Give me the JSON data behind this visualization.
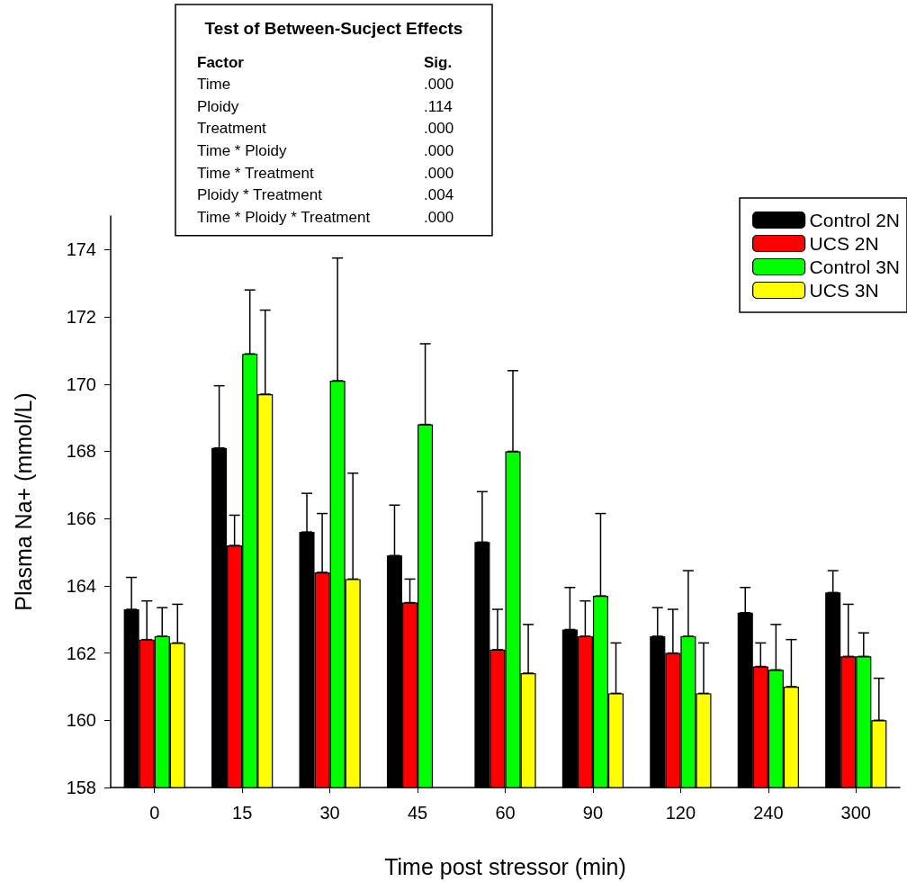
{
  "chart_data": {
    "type": "bar",
    "xlabel": "Time post stressor (min)",
    "ylabel": "Plasma Na+ (mmol/L)",
    "categories": [
      "0",
      "15",
      "30",
      "45",
      "60",
      "90",
      "120",
      "240",
      "300"
    ],
    "series": [
      {
        "name": "Control 2N",
        "color": "#000000",
        "values": [
          163.3,
          168.1,
          165.6,
          164.9,
          165.3,
          162.7,
          162.5,
          163.2,
          163.8
        ],
        "errors": [
          [
            163.3,
            164.25
          ],
          [
            168.1,
            169.95
          ],
          [
            165.6,
            166.75
          ],
          [
            164.9,
            166.4
          ],
          [
            165.3,
            166.8
          ],
          [
            162.7,
            163.95
          ],
          [
            162.5,
            163.35
          ],
          [
            163.2,
            163.95
          ],
          [
            163.8,
            164.45
          ]
        ]
      },
      {
        "name": "UCS 2N",
        "color": "#ff0000",
        "values": [
          162.4,
          165.2,
          164.4,
          163.5,
          162.1,
          162.5,
          162.0,
          161.6,
          161.9
        ],
        "errors": [
          [
            162.4,
            163.55
          ],
          [
            165.2,
            166.1
          ],
          [
            164.4,
            166.15
          ],
          [
            163.5,
            164.2
          ],
          [
            162.1,
            163.3
          ],
          [
            162.5,
            163.55
          ],
          [
            162.0,
            163.3
          ],
          [
            161.6,
            162.3
          ],
          [
            161.9,
            163.45
          ]
        ]
      },
      {
        "name": "Control 3N",
        "color": "#00ff00",
        "values": [
          162.5,
          170.9,
          170.1,
          168.8,
          168.0,
          163.7,
          162.5,
          161.5,
          161.9
        ],
        "errors": [
          [
            162.5,
            163.35
          ],
          [
            170.9,
            172.8
          ],
          [
            170.1,
            173.75
          ],
          [
            168.8,
            171.2
          ],
          [
            168.0,
            170.4
          ],
          [
            163.7,
            166.15
          ],
          [
            162.5,
            164.45
          ],
          [
            161.5,
            162.85
          ],
          [
            161.9,
            162.6
          ]
        ]
      },
      {
        "name": "UCS 3N",
        "color": "#ffff00",
        "values": [
          162.3,
          169.7,
          164.2,
          null,
          161.4,
          160.8,
          160.8,
          161.0,
          160.0
        ],
        "errors": [
          [
            162.3,
            163.45
          ],
          [
            169.7,
            172.2
          ],
          [
            164.2,
            167.35
          ],
          null,
          [
            161.4,
            162.85
          ],
          [
            160.8,
            162.3
          ],
          [
            160.8,
            162.3
          ],
          [
            161.0,
            162.4
          ],
          [
            160.0,
            161.25
          ]
        ]
      }
    ],
    "ylim": [
      158,
      175
    ],
    "yticks": [
      158,
      160,
      162,
      164,
      166,
      168,
      170,
      172,
      174
    ],
    "grid": false,
    "legend": "top right",
    "annotations": [
      "Test of Between-Sucject Effects",
      "Factor",
      "Sig.",
      "Time",
      ".000",
      "Ploidy",
      ".114",
      "Treatment",
      ".000",
      "Time * Ploidy",
      ".000",
      "Time * Treatment",
      ".000",
      "Ploidy * Treatment",
      ".004",
      "Time * Ploidy * Treatment",
      ".000"
    ]
  }
}
